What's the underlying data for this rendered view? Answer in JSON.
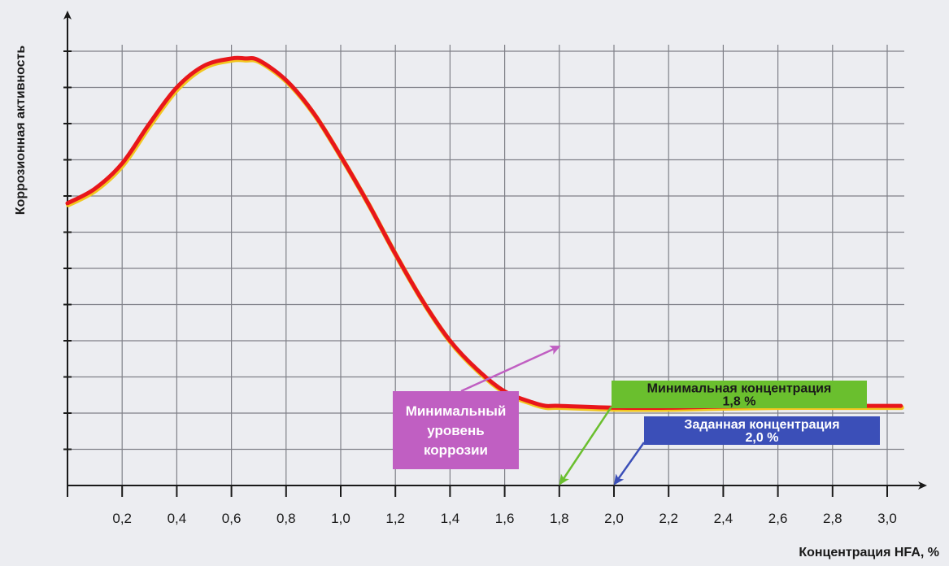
{
  "chart_data": {
    "type": "line",
    "title": "",
    "xlabel": "Концентрация HFA, %",
    "ylabel": "Коррозионная активность",
    "xlim": [
      0,
      3.05
    ],
    "x_ticks": [
      0.2,
      0.4,
      0.6,
      0.8,
      1.0,
      1.2,
      1.4,
      1.6,
      1.8,
      2.0,
      2.2,
      2.4,
      2.6,
      2.8,
      3.0
    ],
    "x_tick_labels": [
      "0,2",
      "0,4",
      "0,6",
      "0,8",
      "1,0",
      "1,2",
      "1,4",
      "1,6",
      "1,8",
      "2,0",
      "2,2",
      "2,4",
      "2,6",
      "2,8",
      "3,0"
    ],
    "ylim": [
      0,
      12
    ],
    "y_ticks_labeled": false,
    "grid": true,
    "line_color": "#e8161b",
    "series": [
      {
        "x": [
          0,
          0.1,
          0.2,
          0.3,
          0.4,
          0.5,
          0.6,
          0.65,
          0.7,
          0.8,
          0.9,
          1.0,
          1.1,
          1.2,
          1.3,
          1.4,
          1.5,
          1.6,
          1.7,
          1.75,
          1.8,
          2.0,
          2.2,
          2.4,
          2.6,
          2.8,
          3.0,
          3.05
        ],
        "y": [
          7.8,
          8.2,
          8.9,
          10.0,
          11.0,
          11.6,
          11.8,
          11.8,
          11.75,
          11.2,
          10.3,
          9.1,
          7.8,
          6.4,
          5.1,
          4.0,
          3.2,
          2.6,
          2.3,
          2.2,
          2.2,
          2.15,
          2.15,
          2.18,
          2.2,
          2.2,
          2.2,
          2.2
        ]
      }
    ],
    "annotations": [
      {
        "id": "min_corrosion",
        "lines": [
          "Минимальный",
          "уровень",
          "коррозии"
        ],
        "color": "#c05fc2",
        "target_x": 1.8,
        "target_y": 2.2
      },
      {
        "id": "min_concentration",
        "lines": [
          "Минимальная концентрация",
          "1,8 %"
        ],
        "color": "#6abf2e",
        "target_x": 1.8,
        "target_y": 0
      },
      {
        "id": "set_concentration",
        "lines": [
          "Заданная концентрация",
          "2,0 %"
        ],
        "color": "#3b4fb8",
        "target_x": 2.0,
        "target_y": 0
      }
    ]
  }
}
